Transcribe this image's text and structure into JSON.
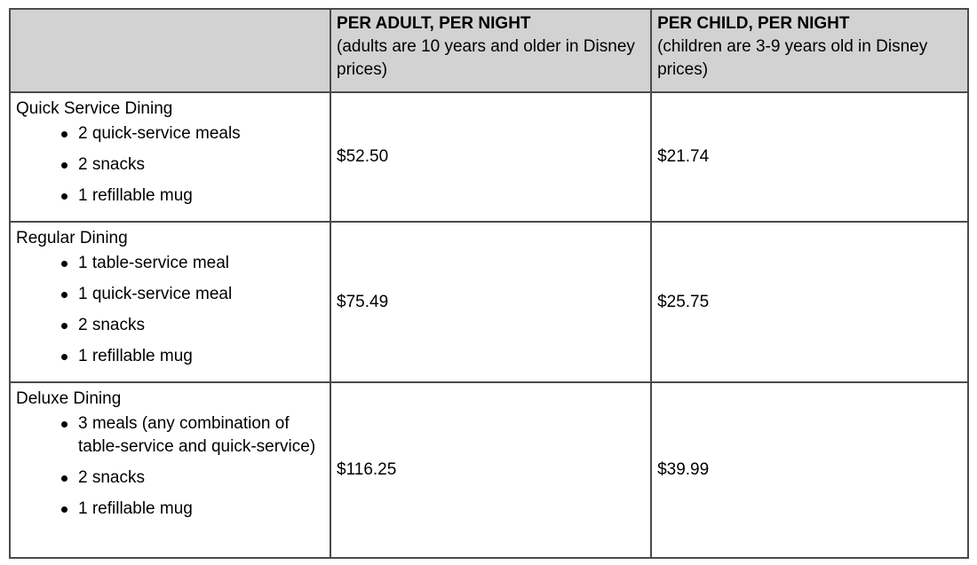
{
  "table": {
    "header": {
      "plan": "",
      "adult_title": "PER ADULT, PER NIGHT",
      "adult_note": "(adults are 10 years and older in Disney prices)",
      "child_title": "PER CHILD, PER NIGHT",
      "child_note": "(children are 3-9 years old in Disney prices)"
    },
    "rows": [
      {
        "name": "Quick Service Dining",
        "items": [
          "2 quick-service meals",
          "2 snacks",
          "1 refillable mug"
        ],
        "adult_price": "$52.50",
        "child_price": "$21.74"
      },
      {
        "name": "Regular Dining",
        "items": [
          "1 table-service meal",
          "1 quick-service meal",
          "2 snacks",
          "1 refillable mug"
        ],
        "adult_price": "$75.49",
        "child_price": "$25.75"
      },
      {
        "name": "Deluxe Dining",
        "items": [
          "3 meals (any combination of table-service and quick-service)",
          "2 snacks",
          "1 refillable mug"
        ],
        "adult_price": "$116.25",
        "child_price": "$39.99"
      }
    ]
  }
}
